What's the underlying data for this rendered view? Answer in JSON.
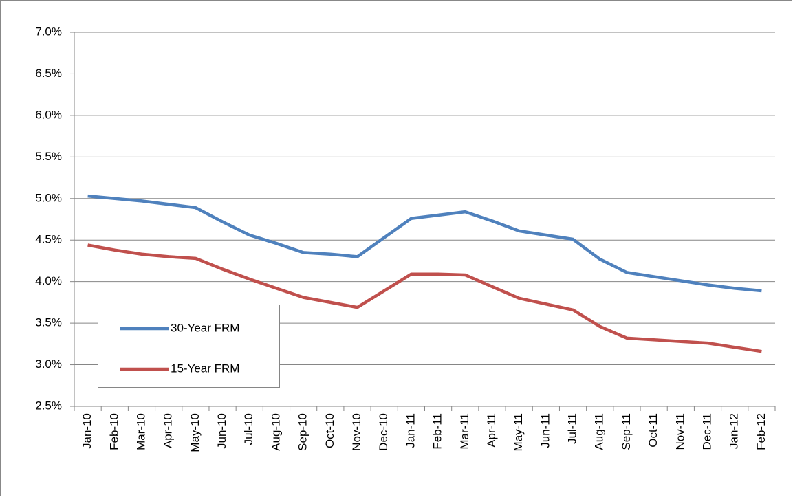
{
  "chart_data": {
    "type": "line",
    "categories": [
      "Jan-10",
      "Feb-10",
      "Mar-10",
      "Apr-10",
      "May-10",
      "Jun-10",
      "Jul-10",
      "Aug-10",
      "Sep-10",
      "Oct-10",
      "Nov-10",
      "Dec-10",
      "Jan-11",
      "Feb-11",
      "Mar-11",
      "Apr-11",
      "May-11",
      "Jun-11",
      "Jul-11",
      "Aug-11",
      "Sep-11",
      "Oct-11",
      "Nov-11",
      "Dec-11",
      "Jan-12",
      "Feb-12"
    ],
    "series": [
      {
        "name": "30-Year FRM",
        "color": "#4f81bd",
        "values": [
          5.03,
          5.0,
          4.97,
          4.93,
          4.89,
          4.72,
          4.56,
          4.46,
          4.35,
          4.33,
          4.3,
          4.53,
          4.76,
          4.8,
          4.84,
          4.73,
          4.61,
          4.56,
          4.51,
          4.27,
          4.11,
          4.06,
          4.01,
          3.96,
          3.92,
          3.89
        ]
      },
      {
        "name": "15-Year FRM",
        "color": "#c0504d",
        "values": [
          4.44,
          4.38,
          4.33,
          4.3,
          4.28,
          4.15,
          4.03,
          3.92,
          3.81,
          3.75,
          3.69,
          3.89,
          4.09,
          4.09,
          4.08,
          3.94,
          3.8,
          3.73,
          3.66,
          3.46,
          3.32,
          3.3,
          3.28,
          3.26,
          3.21,
          3.16
        ]
      }
    ],
    "ylim": [
      2.5,
      7.0
    ],
    "yticks": [
      {
        "value": 2.5,
        "label": "2.5%"
      },
      {
        "value": 3.0,
        "label": "3.0%"
      },
      {
        "value": 3.5,
        "label": "3.5%"
      },
      {
        "value": 4.0,
        "label": "4.0%"
      },
      {
        "value": 4.5,
        "label": "4.5%"
      },
      {
        "value": 5.0,
        "label": "5.0%"
      },
      {
        "value": 5.5,
        "label": "5.5%"
      },
      {
        "value": 6.0,
        "label": "6.0%"
      },
      {
        "value": 6.5,
        "label": "6.5%"
      },
      {
        "value": 7.0,
        "label": "7.0%"
      }
    ],
    "grid": true,
    "legend": "lower-left"
  }
}
